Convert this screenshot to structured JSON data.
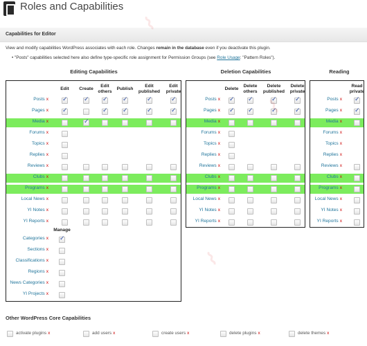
{
  "page": {
    "title": "Roles and Capabilities"
  },
  "postbox": {
    "title": "Capabilities for Editor",
    "intro_parts": [
      "View and modify capabilities WordPress associates with each role. Changes ",
      "remain in the database",
      " even if you deactivate this plugin."
    ],
    "note_before": "• \"Posts\" capabilities selected here also define type-specific role assignment for Permission Groups (see ",
    "note_link": "Role Usage",
    "note_after": ": \"Pattern Roles\")."
  },
  "remove_glyph": "x",
  "post_types": [
    "Posts",
    "Pages",
    "Media",
    "Forums",
    "Topics",
    "Replies",
    "Reviews",
    "Clubs",
    "Programs",
    "Local News",
    "YI Notes",
    "YI Reports"
  ],
  "highlight_rows": [
    2,
    7,
    8
  ],
  "editing": {
    "title": "Editing Capabilities",
    "columns": [
      "Edit",
      "Create",
      "Edit others",
      "Publish",
      "Edit published",
      "Edit private"
    ],
    "cells": [
      [
        2,
        2,
        2,
        2,
        2,
        2
      ],
      [
        2,
        1,
        2,
        2,
        2,
        2
      ],
      [
        1,
        2,
        1,
        1,
        1,
        1
      ],
      [
        1,
        0,
        0,
        0,
        0,
        0
      ],
      [
        1,
        0,
        0,
        0,
        0,
        0
      ],
      [
        1,
        0,
        0,
        0,
        0,
        0
      ],
      [
        1,
        1,
        1,
        1,
        1,
        1
      ],
      [
        1,
        1,
        1,
        1,
        1,
        1
      ],
      [
        1,
        1,
        1,
        1,
        1,
        1
      ],
      [
        1,
        1,
        1,
        1,
        1,
        1
      ],
      [
        1,
        1,
        1,
        1,
        1,
        1
      ],
      [
        1,
        1,
        1,
        1,
        1,
        1
      ]
    ]
  },
  "deletion": {
    "title": "Deletion Capabilities",
    "columns": [
      "Delete",
      "Delete others",
      "Delete published",
      "Delete private"
    ],
    "cells": [
      [
        2,
        2,
        2,
        2
      ],
      [
        2,
        2,
        2,
        2
      ],
      [
        1,
        1,
        1,
        1
      ],
      [
        1,
        0,
        0,
        0
      ],
      [
        1,
        0,
        0,
        0
      ],
      [
        1,
        0,
        0,
        0
      ],
      [
        1,
        1,
        1,
        1
      ],
      [
        1,
        1,
        1,
        1
      ],
      [
        1,
        1,
        1,
        1
      ],
      [
        1,
        1,
        1,
        1
      ],
      [
        1,
        1,
        1,
        1
      ],
      [
        1,
        1,
        1,
        1
      ]
    ]
  },
  "reading": {
    "title": "Reading",
    "columns": [
      "Read private"
    ],
    "cells": [
      [
        2
      ],
      [
        2
      ],
      [
        1
      ],
      [
        0
      ],
      [
        0
      ],
      [
        0
      ],
      [
        1
      ],
      [
        1
      ],
      [
        1
      ],
      [
        1
      ],
      [
        1
      ],
      [
        1
      ]
    ]
  },
  "taxonomies": {
    "column": "Manage",
    "items": [
      "Categories",
      "Sections",
      "Classifications",
      "Regions",
      "News Categories",
      "YI Projects"
    ],
    "cells": [
      2,
      1,
      1,
      1,
      1,
      1
    ]
  },
  "other_core": {
    "title": "Other WordPress Core Capabilities",
    "items": [
      "activate plugins",
      "add users",
      "create users",
      "delete plugins",
      "delete themes"
    ]
  },
  "colors": {
    "link": "#21759b",
    "remove": "#cc0000",
    "highlight": "#7cec5d",
    "check": "#2a4aa0"
  }
}
